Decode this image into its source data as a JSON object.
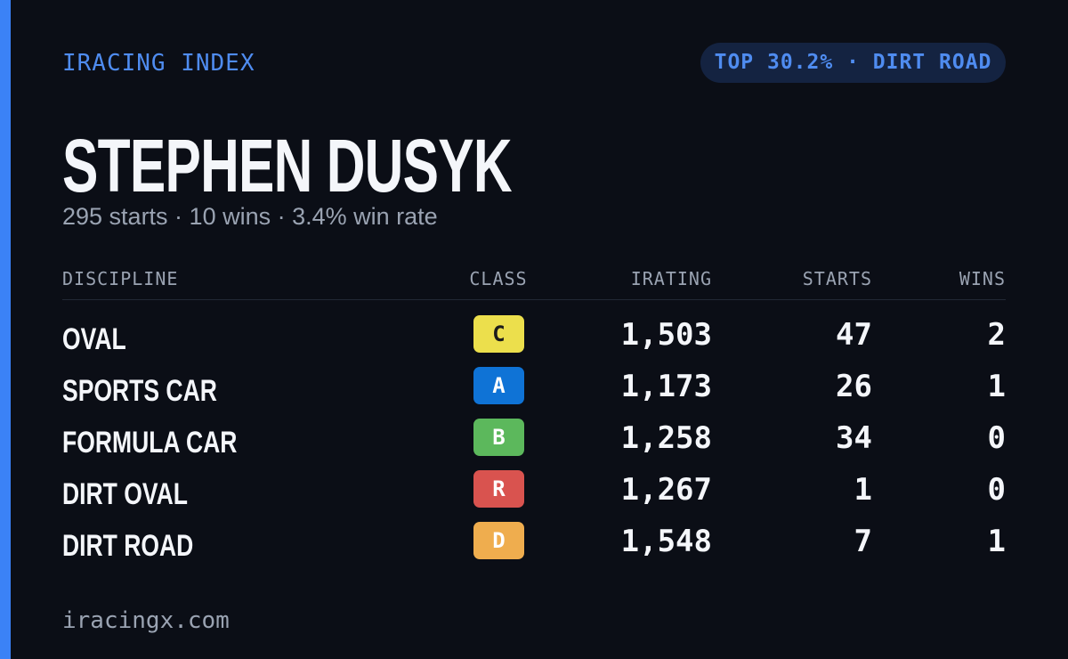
{
  "header": {
    "brand": "IRACING INDEX",
    "badge": "TOP 30.2% · DIRT ROAD"
  },
  "player": {
    "name": "STEPHEN DUSYK",
    "summary": "295 starts · 10 wins · 3.4% win rate"
  },
  "table": {
    "columns": [
      "DISCIPLINE",
      "CLASS",
      "IRATING",
      "STARTS",
      "WINS"
    ],
    "rows": [
      {
        "discipline": "OVAL",
        "class": "C",
        "class_color": "#ecdf4c",
        "class_text_color": "#1b1b1b",
        "irating": "1,503",
        "starts": "47",
        "wins": "2"
      },
      {
        "discipline": "SPORTS CAR",
        "class": "A",
        "class_color": "#0f73d6",
        "class_text_color": "#ffffff",
        "irating": "1,173",
        "starts": "26",
        "wins": "1"
      },
      {
        "discipline": "FORMULA CAR",
        "class": "B",
        "class_color": "#5cb85c",
        "class_text_color": "#ffffff",
        "irating": "1,258",
        "starts": "34",
        "wins": "0"
      },
      {
        "discipline": "DIRT OVAL",
        "class": "R",
        "class_color": "#d9534f",
        "class_text_color": "#ffffff",
        "irating": "1,267",
        "starts": "1",
        "wins": "0"
      },
      {
        "discipline": "DIRT ROAD",
        "class": "D",
        "class_color": "#efad4e",
        "class_text_color": "#ffffff",
        "irating": "1,548",
        "starts": "7",
        "wins": "1"
      }
    ]
  },
  "footer": {
    "url": "iracingx.com"
  }
}
